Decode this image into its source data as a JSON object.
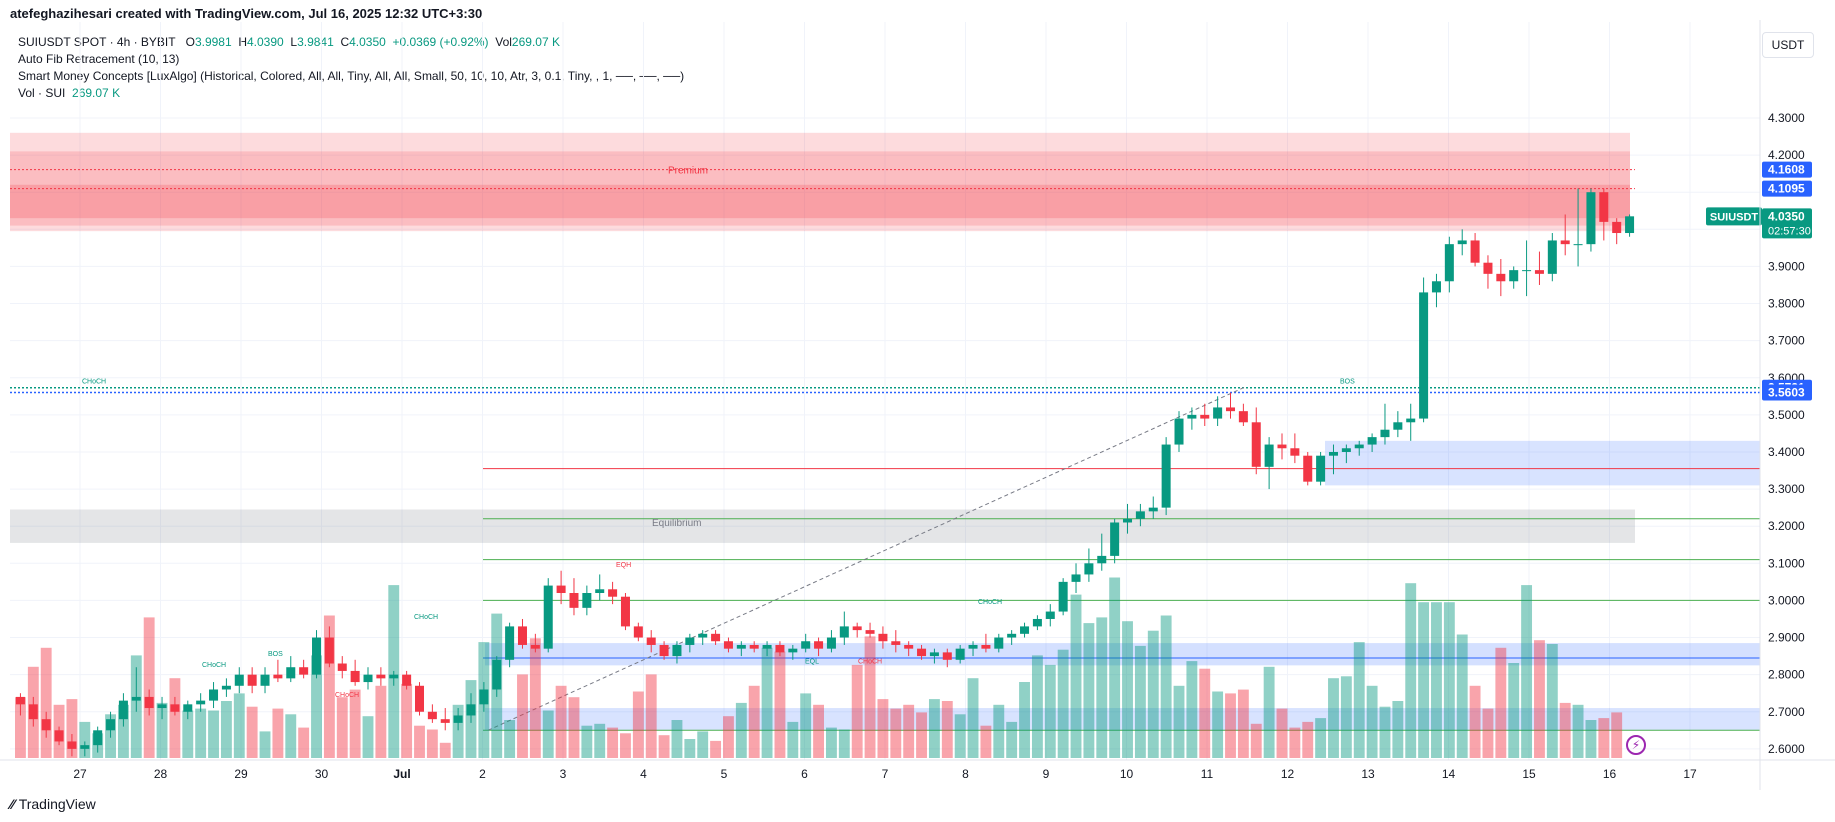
{
  "header": {
    "text": "atefeghazihesari created with TradingView.com, Jul 16, 2025 12:32 UTC+3:30"
  },
  "legend": {
    "symbol_line": {
      "symbol": "SUIUSDT SPOT · 4h · BYBIT",
      "o_label": "O",
      "o_value": "3.9981",
      "h_label": "H",
      "h_value": "4.0390",
      "l_label": "L",
      "l_value": "3.9841",
      "c_label": "C",
      "c_value": "4.0350",
      "change": "+0.0369 (+0.92%)",
      "vol_label": "Vol",
      "vol_value": "269.07 K"
    },
    "fib": "Auto Fib Retracement (10, 13)",
    "smc": "Smart Money Concepts [LuxAlgo] (Historical, Colored, All, All, Tiny, All, All, Small, 50, 10, 10, Atr, 3, 0.1, Tiny, , 1, ──, ──, ──)",
    "vol_name": "Vol · SUI",
    "vol_value": "269.07 K"
  },
  "currency": "USDT",
  "footer": {
    "brand": "TradingView"
  },
  "colors": {
    "up": "#089981",
    "down": "#f23645",
    "zone_blue": "#2962ff",
    "zone_red": "#f23645",
    "fib": "#4caf50"
  },
  "chart_data": {
    "type": "candlestick",
    "y_ticks": [
      "2.6000",
      "2.7000",
      "2.8000",
      "2.9000",
      "3.0000",
      "3.1000",
      "3.2000",
      "3.3000",
      "3.4000",
      "3.5000",
      "3.6000",
      "3.7000",
      "3.8000",
      "3.9000",
      "4.0000",
      "4.1000",
      "4.2000",
      "4.3000"
    ],
    "ylim": [
      2.57,
      4.37
    ],
    "x_labels": [
      "27",
      "28",
      "29",
      "30",
      "Jul",
      "2",
      "3",
      "4",
      "5",
      "6",
      "7",
      "8",
      "9",
      "10",
      "11",
      "12",
      "13",
      "14",
      "15",
      "16",
      "17"
    ],
    "price_badges": [
      {
        "label": "",
        "value": "4.1608",
        "price": 4.1608
      },
      {
        "label": "",
        "value": "4.1095",
        "price": 4.1095
      },
      {
        "label": "SUIUSDT",
        "value": "4.0350",
        "sub": "02:57:30",
        "price": 4.035
      },
      {
        "label": "",
        "value": "3.5731",
        "price": 3.5731
      },
      {
        "label": "",
        "value": "3.5603",
        "price": 3.5603
      }
    ],
    "annotations": [
      {
        "text": "Premium",
        "price": 4.15
      },
      {
        "text": "Equilibrium",
        "price": 3.2
      },
      {
        "text": "CHoCH",
        "price": 3.585
      },
      {
        "text": "BOS",
        "price": 3.585
      },
      {
        "text": "EQH",
        "price": 3.09
      },
      {
        "text": "EQL",
        "price": 2.83
      },
      {
        "text": "CHoCH",
        "price": 2.83
      },
      {
        "text": "CHoCH",
        "price": 2.99
      },
      {
        "text": "CHoCH",
        "price": 2.95
      },
      {
        "text": "CHoCH",
        "price": 2.82
      },
      {
        "text": "BOS",
        "price": 2.85
      },
      {
        "text": "CHoCH",
        "price": 2.74
      }
    ],
    "fib_levels": [
      3.355,
      3.22,
      3.11,
      3.0,
      2.845,
      2.65
    ],
    "candles": [
      [
        2.74,
        2.75,
        2.69,
        2.72
      ],
      [
        2.72,
        2.74,
        2.66,
        2.68
      ],
      [
        2.68,
        2.7,
        2.63,
        2.65
      ],
      [
        2.65,
        2.66,
        2.61,
        2.62
      ],
      [
        2.62,
        2.64,
        2.58,
        2.6
      ],
      [
        2.6,
        2.62,
        2.58,
        2.61
      ],
      [
        2.61,
        2.66,
        2.59,
        2.65
      ],
      [
        2.65,
        2.7,
        2.63,
        2.68
      ],
      [
        2.68,
        2.75,
        2.66,
        2.73
      ],
      [
        2.73,
        2.82,
        2.7,
        2.74
      ],
      [
        2.74,
        2.76,
        2.69,
        2.71
      ],
      [
        2.71,
        2.74,
        2.68,
        2.72
      ],
      [
        2.72,
        2.74,
        2.69,
        2.7
      ],
      [
        2.7,
        2.73,
        2.68,
        2.72
      ],
      [
        2.72,
        2.75,
        2.7,
        2.73
      ],
      [
        2.73,
        2.78,
        2.71,
        2.76
      ],
      [
        2.76,
        2.79,
        2.74,
        2.77
      ],
      [
        2.77,
        2.82,
        2.75,
        2.8
      ],
      [
        2.8,
        2.82,
        2.75,
        2.77
      ],
      [
        2.77,
        2.82,
        2.75,
        2.8
      ],
      [
        2.8,
        2.84,
        2.78,
        2.79
      ],
      [
        2.79,
        2.85,
        2.78,
        2.82
      ],
      [
        2.82,
        2.84,
        2.79,
        2.8
      ],
      [
        2.8,
        2.92,
        2.79,
        2.9
      ],
      [
        2.9,
        2.93,
        2.82,
        2.83
      ],
      [
        2.83,
        2.85,
        2.79,
        2.81
      ],
      [
        2.81,
        2.84,
        2.77,
        2.78
      ],
      [
        2.78,
        2.82,
        2.76,
        2.8
      ],
      [
        2.8,
        2.82,
        2.77,
        2.79
      ],
      [
        2.79,
        2.81,
        2.77,
        2.8
      ],
      [
        2.8,
        2.81,
        2.76,
        2.77
      ],
      [
        2.77,
        2.78,
        2.69,
        2.7
      ],
      [
        2.7,
        2.72,
        2.67,
        2.68
      ],
      [
        2.68,
        2.71,
        2.65,
        2.67
      ],
      [
        2.67,
        2.71,
        2.65,
        2.69
      ],
      [
        2.69,
        2.75,
        2.67,
        2.72
      ],
      [
        2.72,
        2.78,
        2.7,
        2.76
      ],
      [
        2.76,
        2.85,
        2.74,
        2.84
      ],
      [
        2.84,
        2.94,
        2.82,
        2.93
      ],
      [
        2.93,
        2.95,
        2.87,
        2.88
      ],
      [
        2.88,
        2.91,
        2.86,
        2.87
      ],
      [
        2.87,
        3.06,
        2.86,
        3.04
      ],
      [
        3.04,
        3.08,
        2.99,
        3.02
      ],
      [
        3.02,
        3.06,
        2.96,
        2.98
      ],
      [
        2.98,
        3.04,
        2.96,
        3.02
      ],
      [
        3.02,
        3.07,
        3.0,
        3.03
      ],
      [
        3.03,
        3.05,
        2.99,
        3.01
      ],
      [
        3.01,
        3.02,
        2.92,
        2.93
      ],
      [
        2.93,
        2.94,
        2.89,
        2.9
      ],
      [
        2.9,
        2.92,
        2.86,
        2.88
      ],
      [
        2.88,
        2.89,
        2.84,
        2.85
      ],
      [
        2.85,
        2.89,
        2.83,
        2.88
      ],
      [
        2.88,
        2.91,
        2.86,
        2.9
      ],
      [
        2.9,
        2.92,
        2.88,
        2.91
      ],
      [
        2.91,
        2.92,
        2.88,
        2.89
      ],
      [
        2.89,
        2.9,
        2.86,
        2.87
      ],
      [
        2.87,
        2.89,
        2.85,
        2.88
      ],
      [
        2.88,
        2.89,
        2.86,
        2.87
      ],
      [
        2.87,
        2.89,
        2.85,
        2.88
      ],
      [
        2.88,
        2.89,
        2.85,
        2.86
      ],
      [
        2.86,
        2.88,
        2.84,
        2.87
      ],
      [
        2.87,
        2.91,
        2.86,
        2.89
      ],
      [
        2.89,
        2.9,
        2.85,
        2.87
      ],
      [
        2.87,
        2.92,
        2.86,
        2.9
      ],
      [
        2.9,
        2.97,
        2.88,
        2.93
      ],
      [
        2.93,
        2.94,
        2.9,
        2.92
      ],
      [
        2.92,
        2.94,
        2.9,
        2.91
      ],
      [
        2.91,
        2.93,
        2.87,
        2.89
      ],
      [
        2.89,
        2.92,
        2.86,
        2.88
      ],
      [
        2.88,
        2.89,
        2.85,
        2.87
      ],
      [
        2.87,
        2.88,
        2.84,
        2.85
      ],
      [
        2.85,
        2.87,
        2.83,
        2.86
      ],
      [
        2.86,
        2.87,
        2.82,
        2.84
      ],
      [
        2.84,
        2.88,
        2.83,
        2.87
      ],
      [
        2.87,
        2.89,
        2.85,
        2.88
      ],
      [
        2.88,
        2.91,
        2.86,
        2.87
      ],
      [
        2.87,
        2.91,
        2.86,
        2.9
      ],
      [
        2.9,
        2.92,
        2.88,
        2.91
      ],
      [
        2.91,
        2.94,
        2.9,
        2.93
      ],
      [
        2.93,
        2.96,
        2.92,
        2.95
      ],
      [
        2.95,
        2.99,
        2.93,
        2.97
      ],
      [
        2.97,
        3.06,
        2.96,
        3.05
      ],
      [
        3.05,
        3.1,
        3.02,
        3.07
      ],
      [
        3.07,
        3.14,
        3.05,
        3.1
      ],
      [
        3.1,
        3.18,
        3.08,
        3.12
      ],
      [
        3.12,
        3.22,
        3.1,
        3.21
      ],
      [
        3.21,
        3.26,
        3.18,
        3.22
      ],
      [
        3.22,
        3.26,
        3.2,
        3.24
      ],
      [
        3.24,
        3.28,
        3.22,
        3.25
      ],
      [
        3.25,
        3.44,
        3.23,
        3.42
      ],
      [
        3.42,
        3.51,
        3.4,
        3.49
      ],
      [
        3.49,
        3.52,
        3.46,
        3.5
      ],
      [
        3.5,
        3.53,
        3.47,
        3.49
      ],
      [
        3.49,
        3.55,
        3.47,
        3.52
      ],
      [
        3.52,
        3.56,
        3.49,
        3.51
      ],
      [
        3.51,
        3.53,
        3.47,
        3.48
      ],
      [
        3.48,
        3.52,
        3.34,
        3.36
      ],
      [
        3.36,
        3.44,
        3.3,
        3.42
      ],
      [
        3.42,
        3.45,
        3.38,
        3.41
      ],
      [
        3.41,
        3.45,
        3.37,
        3.39
      ],
      [
        3.39,
        3.4,
        3.31,
        3.32
      ],
      [
        3.32,
        3.4,
        3.31,
        3.39
      ],
      [
        3.39,
        3.42,
        3.34,
        3.4
      ],
      [
        3.4,
        3.42,
        3.37,
        3.41
      ],
      [
        3.41,
        3.43,
        3.39,
        3.42
      ],
      [
        3.42,
        3.45,
        3.4,
        3.44
      ],
      [
        3.44,
        3.53,
        3.42,
        3.46
      ],
      [
        3.46,
        3.51,
        3.44,
        3.48
      ],
      [
        3.48,
        3.53,
        3.43,
        3.49
      ],
      [
        3.49,
        3.87,
        3.48,
        3.83
      ],
      [
        3.83,
        3.88,
        3.79,
        3.86
      ],
      [
        3.86,
        3.98,
        3.83,
        3.96
      ],
      [
        3.96,
        4.0,
        3.93,
        3.97
      ],
      [
        3.97,
        3.99,
        3.9,
        3.91
      ],
      [
        3.91,
        3.93,
        3.84,
        3.88
      ],
      [
        3.88,
        3.92,
        3.82,
        3.86
      ],
      [
        3.86,
        3.9,
        3.84,
        3.89
      ],
      [
        3.89,
        3.97,
        3.82,
        3.89
      ],
      [
        3.89,
        3.94,
        3.85,
        3.88
      ],
      [
        3.88,
        3.99,
        3.86,
        3.97
      ],
      [
        3.97,
        4.04,
        3.93,
        3.96
      ],
      [
        3.96,
        4.11,
        3.9,
        3.96
      ],
      [
        3.96,
        4.11,
        3.94,
        4.1
      ],
      [
        4.1,
        4.11,
        3.97,
        4.02
      ],
      [
        4.02,
        4.03,
        3.96,
        3.99
      ],
      [
        3.99,
        4.04,
        3.98,
        4.035
      ]
    ],
    "volume": [
      0.32,
      0.48,
      0.58,
      0.28,
      0.31,
      0.19,
      0.13,
      0.23,
      0.28,
      0.54,
      0.74,
      0.29,
      0.42,
      0.25,
      0.26,
      0.25,
      0.3,
      0.34,
      0.27,
      0.14,
      0.26,
      0.23,
      0.16,
      0.54,
      0.75,
      0.32,
      0.36,
      0.22,
      0.38,
      0.91,
      0.39,
      0.17,
      0.15,
      0.08,
      0.28,
      0.41,
      0.61,
      0.76,
      0.2,
      0.44,
      0.63,
      0.25,
      0.38,
      0.32,
      0.17,
      0.18,
      0.16,
      0.13,
      0.35,
      0.44,
      0.12,
      0.2,
      0.1,
      0.14,
      0.09,
      0.22,
      0.29,
      0.38,
      0.58,
      0.56,
      0.19,
      0.34,
      0.28,
      0.16,
      0.15,
      0.49,
      0.64,
      0.31,
      0.26,
      0.28,
      0.24,
      0.31,
      0.3,
      0.23,
      0.42,
      0.17,
      0.28,
      0.19,
      0.4,
      0.54,
      0.49,
      0.57,
      0.86,
      0.71,
      0.74,
      0.95,
      0.72,
      0.59,
      0.67,
      0.75,
      0.38,
      0.51,
      0.47,
      0.35,
      0.34,
      0.36,
      0.18,
      0.48,
      0.26,
      0.16,
      0.19,
      0.21,
      0.42,
      0.43,
      0.61,
      0.38,
      0.27,
      0.3,
      0.92,
      0.82,
      0.82,
      0.82,
      0.65,
      0.38,
      0.26,
      0.58,
      0.5,
      0.91,
      0.62,
      0.6,
      0.29,
      0.28,
      0.2,
      0.21,
      0.24
    ]
  }
}
